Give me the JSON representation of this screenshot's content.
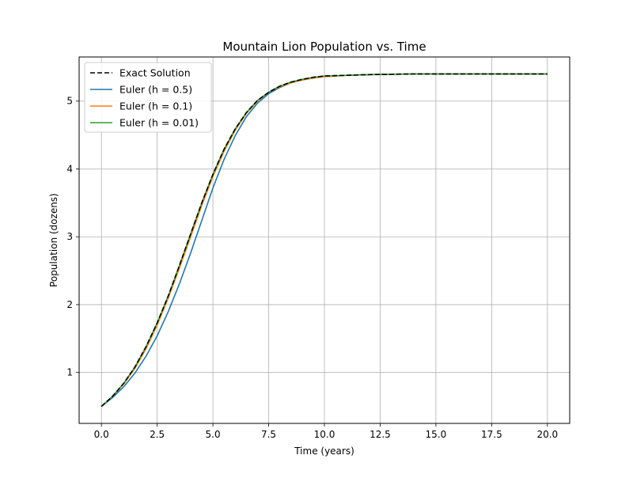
{
  "chart_data": {
    "type": "line",
    "title": "Mountain Lion Population vs. Time",
    "xlabel": "Time (years)",
    "ylabel": "Population (dozens)",
    "xlim": [
      -1.0,
      21.0
    ],
    "ylim": [
      0.25,
      5.65
    ],
    "xticks": [
      0.0,
      2.5,
      5.0,
      7.5,
      10.0,
      12.5,
      15.0,
      17.5,
      20.0
    ],
    "xtick_labels": [
      "0.0",
      "2.5",
      "5.0",
      "7.5",
      "10.0",
      "12.5",
      "15.0",
      "17.5",
      "20.0"
    ],
    "yticks": [
      1,
      2,
      3,
      4,
      5
    ],
    "ytick_labels": [
      "1",
      "2",
      "3",
      "4",
      "5"
    ],
    "grid": true,
    "legend_position": "top-left",
    "series": [
      {
        "name": "Exact Solution",
        "color": "#000000",
        "dash": true,
        "x": [
          0,
          0.5,
          1,
          1.5,
          2,
          2.5,
          3,
          3.5,
          4,
          4.5,
          5,
          5.5,
          6,
          6.5,
          7,
          7.5,
          8,
          8.5,
          9,
          9.5,
          10,
          11,
          12,
          13,
          14,
          15,
          16,
          17,
          18,
          19,
          20
        ],
        "y": [
          0.5,
          0.65,
          0.84,
          1.08,
          1.38,
          1.73,
          2.13,
          2.58,
          3.04,
          3.5,
          3.92,
          4.29,
          4.59,
          4.83,
          5.01,
          5.13,
          5.22,
          5.28,
          5.32,
          5.35,
          5.37,
          5.38,
          5.39,
          5.395,
          5.4,
          5.4,
          5.4,
          5.4,
          5.4,
          5.4,
          5.4
        ]
      },
      {
        "name": "Euler (h = 0.5)",
        "color": "#1f77b4",
        "dash": false,
        "x": [
          0,
          0.5,
          1,
          1.5,
          2,
          2.5,
          3,
          3.5,
          4,
          4.5,
          5,
          5.5,
          6,
          6.5,
          7,
          7.5,
          8,
          8.5,
          9,
          9.5,
          10,
          11,
          12,
          13,
          14,
          15,
          16,
          17,
          18,
          19,
          20
        ],
        "y": [
          0.5,
          0.63,
          0.79,
          0.99,
          1.24,
          1.54,
          1.9,
          2.31,
          2.76,
          3.24,
          3.72,
          4.14,
          4.49,
          4.77,
          4.97,
          5.11,
          5.2,
          5.27,
          5.31,
          5.34,
          5.36,
          5.38,
          5.39,
          5.395,
          5.4,
          5.4,
          5.4,
          5.4,
          5.4,
          5.4,
          5.4
        ]
      },
      {
        "name": "Euler (h = 0.1)",
        "color": "#ff7f0e",
        "dash": false,
        "x": [
          0,
          0.5,
          1,
          1.5,
          2,
          2.5,
          3,
          3.5,
          4,
          4.5,
          5,
          5.5,
          6,
          6.5,
          7,
          7.5,
          8,
          8.5,
          9,
          9.5,
          10,
          11,
          12,
          13,
          14,
          15,
          16,
          17,
          18,
          19,
          20
        ],
        "y": [
          0.5,
          0.65,
          0.83,
          1.06,
          1.35,
          1.7,
          2.1,
          2.54,
          3.0,
          3.46,
          3.89,
          4.26,
          4.57,
          4.82,
          5.0,
          5.13,
          5.21,
          5.27,
          5.31,
          5.34,
          5.36,
          5.38,
          5.39,
          5.395,
          5.4,
          5.4,
          5.4,
          5.4,
          5.4,
          5.4,
          5.4
        ]
      },
      {
        "name": "Euler (h = 0.01)",
        "color": "#2ca02c",
        "dash": false,
        "x": [
          0,
          0.5,
          1,
          1.5,
          2,
          2.5,
          3,
          3.5,
          4,
          4.5,
          5,
          5.5,
          6,
          6.5,
          7,
          7.5,
          8,
          8.5,
          9,
          9.5,
          10,
          11,
          12,
          13,
          14,
          15,
          16,
          17,
          18,
          19,
          20
        ],
        "y": [
          0.5,
          0.65,
          0.84,
          1.08,
          1.38,
          1.73,
          2.13,
          2.58,
          3.04,
          3.5,
          3.92,
          4.29,
          4.59,
          4.83,
          5.01,
          5.13,
          5.22,
          5.28,
          5.32,
          5.35,
          5.37,
          5.38,
          5.39,
          5.395,
          5.4,
          5.4,
          5.4,
          5.4,
          5.4,
          5.4,
          5.4
        ]
      }
    ]
  }
}
